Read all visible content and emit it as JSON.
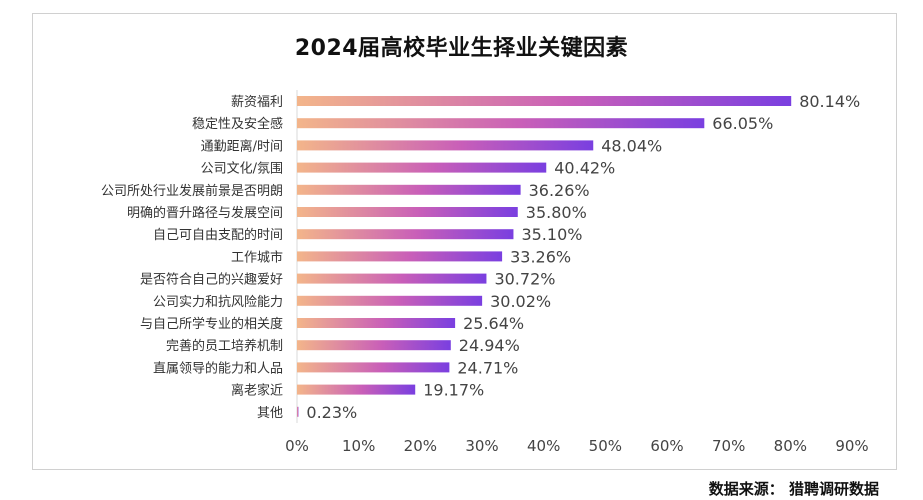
{
  "chart_data": {
    "type": "bar",
    "orientation": "horizontal",
    "title": "2024届高校毕业生择业关键因素",
    "categories": [
      "薪资福利",
      "稳定性及安全感",
      "通勤距离/时间",
      "公司文化/氛围",
      "公司所处行业发展前景是否明朗",
      "明确的晋升路径与发展空间",
      "自己可自由支配的时间",
      "工作城市",
      "是否符合自己的兴趣爱好",
      "公司实力和抗风险能力",
      "与自己所学专业的相关度",
      "完善的员工培养机制",
      "直属领导的能力和人品",
      "离老家近",
      "其他"
    ],
    "values": [
      80.14,
      66.05,
      48.04,
      40.42,
      36.26,
      35.8,
      35.1,
      33.26,
      30.72,
      30.02,
      25.64,
      24.94,
      24.71,
      19.17,
      0.23
    ],
    "value_labels": [
      "80.14%",
      "66.05%",
      "48.04%",
      "40.42%",
      "36.26%",
      "35.80%",
      "35.10%",
      "33.26%",
      "30.72%",
      "30.02%",
      "25.64%",
      "24.94%",
      "24.71%",
      "19.17%",
      "0.23%"
    ],
    "xlim": [
      0,
      90
    ],
    "xticks": [
      "0%",
      "10%",
      "20%",
      "30%",
      "40%",
      "50%",
      "60%",
      "70%",
      "80%",
      "90%"
    ],
    "grid": false,
    "legend": "none",
    "colors": {
      "gradient_start": "#f3b58a",
      "gradient_mid": "#c95fb8",
      "gradient_end": "#7a3fe0"
    }
  },
  "source_text": "数据来源：  猎聘调研数据"
}
